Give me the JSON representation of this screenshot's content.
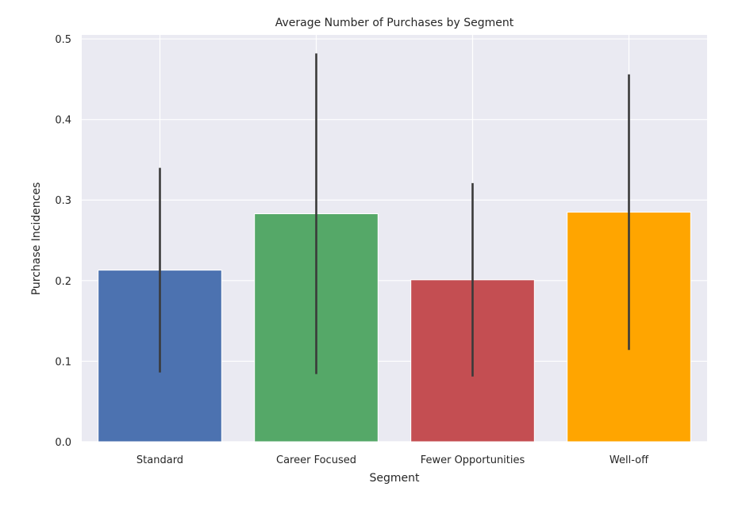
{
  "chart_data": {
    "type": "bar",
    "title": "Average Number of Purchases by Segment",
    "xlabel": "Segment",
    "ylabel": "Purchase Incidences",
    "categories": [
      "Standard",
      "Career Focused",
      "Fewer Opportunities",
      "Well-off"
    ],
    "values": [
      0.213,
      0.283,
      0.201,
      0.285
    ],
    "error": [
      0.127,
      0.199,
      0.12,
      0.171
    ],
    "colors": [
      "#4c72b0",
      "#55a868",
      "#c44e52",
      "#ffa500"
    ],
    "ylim": [
      0,
      0.505
    ],
    "yticks": [
      "0.0",
      "0.1",
      "0.2",
      "0.3",
      "0.4",
      "0.5"
    ],
    "grid": true,
    "background": "#eaeaf2",
    "error_color": "#3a3a3a"
  }
}
